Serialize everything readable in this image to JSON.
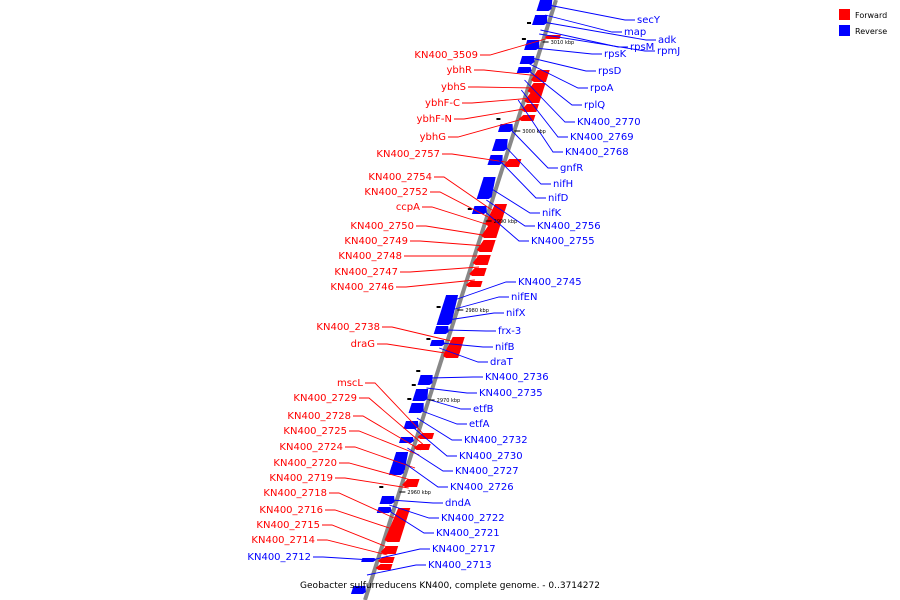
{
  "colors": {
    "forward": "#ff0000",
    "reverse": "#0000ff",
    "backbone": "#888888"
  },
  "legend": [
    {
      "label": "Forward",
      "color": "#ff0000"
    },
    {
      "label": "Reverse",
      "color": "#0000ff"
    }
  ],
  "caption": "Geobacter sulfurreducens KN400, complete genome. - 0..3714272",
  "ticks": [
    "3010 kbp",
    "3000 kbp",
    "2990 kbp",
    "2980 kbp",
    "2970 kbp",
    "2960 kbp"
  ],
  "forward_genes": [
    "KN400_3509",
    "ybhR",
    "ybhS",
    "ybhF-C",
    "ybhF-N",
    "ybhG",
    "KN400_2757",
    "KN400_2754",
    "KN400_2752",
    "ccpA",
    "KN400_2750",
    "KN400_2749",
    "KN400_2748",
    "KN400_2747",
    "KN400_2746",
    "KN400_2738",
    "draG",
    "mscL",
    "KN400_2729",
    "KN400_2728",
    "KN400_2725",
    "KN400_2724",
    "KN400_2720",
    "KN400_2719",
    "KN400_2718",
    "KN400_2716",
    "KN400_2715",
    "KN400_2714"
  ],
  "reverse_genes_right": [
    "secY",
    "map",
    "adk",
    "rpsM",
    "rpmJ",
    "rpsK",
    "rpsD",
    "rpoA",
    "rplQ",
    "KN400_2770",
    "KN400_2769",
    "KN400_2768",
    "gnfR",
    "nifH",
    "nifD",
    "nifK",
    "KN400_2756",
    "KN400_2755",
    "KN400_2745",
    "nifEN",
    "nifX",
    "frx-3",
    "nifB",
    "draT",
    "KN400_2736",
    "KN400_2735",
    "etfB",
    "etfA",
    "KN400_2732",
    "KN400_2730",
    "KN400_2727",
    "KN400_2726",
    "dndA",
    "KN400_2722",
    "KN400_2721",
    "KN400_2717",
    "KN400_2713"
  ],
  "reverse_genes_left": [
    "KN400_2712"
  ]
}
